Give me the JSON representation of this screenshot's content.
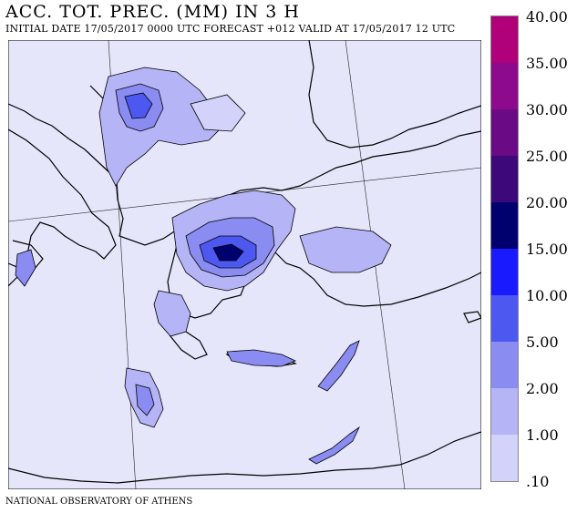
{
  "title": "ACC. TOT. PREC. (MM) IN 3 H",
  "subtitle": "INITIAL DATE 17/05/2017   0000 UTC FORECAST +012 VALID AT  17/05/2017   12 UTC",
  "footer": "NATIONAL OBSERVATORY OF ATHENS",
  "legend": {
    "labels": [
      "40.00",
      "35.00",
      "30.00",
      "25.00",
      "20.00",
      "15.00",
      "10.00",
      "5.00",
      "2.00",
      "1.00",
      ".10"
    ],
    "colors": [
      "#b0007a",
      "#8e0a8c",
      "#6a0a84",
      "#3c087a",
      "#00006e",
      "#1a1aff",
      "#4c58f0",
      "#8a8cf2",
      "#b4b4f6",
      "#d2d2fa",
      "#e8e8fd"
    ]
  },
  "map": {
    "background_color": "#e6e6fb"
  }
}
